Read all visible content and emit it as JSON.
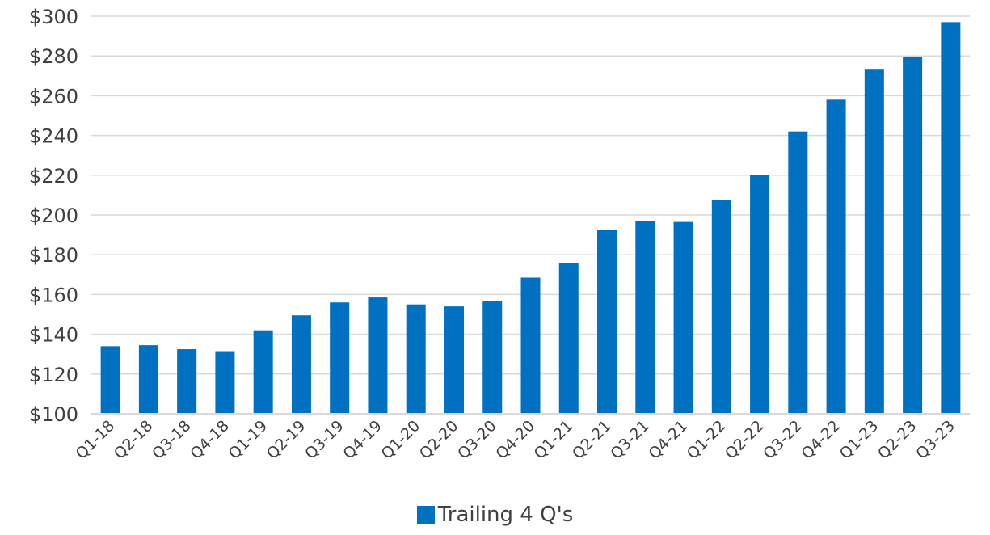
{
  "chart_data": {
    "type": "bar",
    "categories": [
      "Q1-18",
      "Q2-18",
      "Q3-18",
      "Q4-18",
      "Q1-19",
      "Q2-19",
      "Q3-19",
      "Q4-19",
      "Q1-20",
      "Q2-20",
      "Q3-20",
      "Q4-20",
      "Q1-21",
      "Q2-21",
      "Q3-21",
      "Q4-21",
      "Q1-22",
      "Q2-22",
      "Q3-22",
      "Q4-22",
      "Q1-23",
      "Q2-23",
      "Q3-23"
    ],
    "series": [
      {
        "name": "Trailing 4 Q's",
        "color": "#0070C0",
        "values": [
          134,
          134.5,
          132.5,
          131.5,
          142,
          149.5,
          156,
          158.5,
          155,
          154,
          156.5,
          168.5,
          176,
          192.5,
          197,
          196.5,
          207.5,
          220,
          242,
          258,
          273.5,
          279.5,
          297
        ]
      }
    ],
    "y_ticks": [
      "$100",
      "$120",
      "$140",
      "$160",
      "$180",
      "$200",
      "$220",
      "$240",
      "$260",
      "$280",
      "$300"
    ],
    "ylim": [
      100,
      300
    ],
    "grid": true,
    "legend_position": "bottom",
    "title": "",
    "xlabel": "",
    "ylabel": ""
  }
}
